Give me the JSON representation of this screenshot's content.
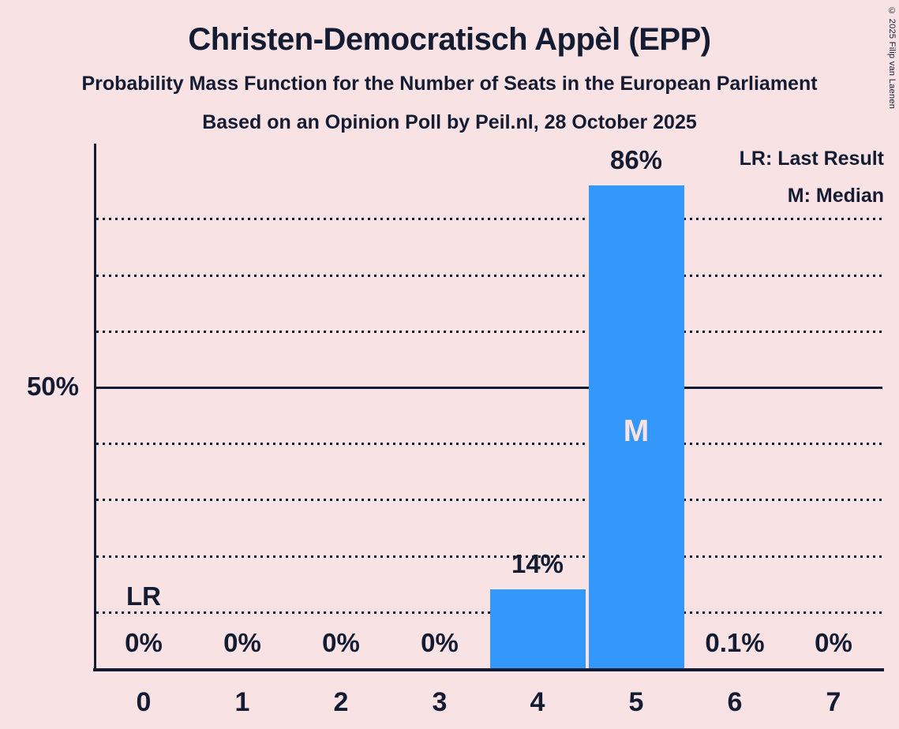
{
  "header": {
    "title": "Christen-Democratisch Appèl (EPP)",
    "subtitle": "Probability Mass Function for the Number of Seats in the European Parliament",
    "source_line": "Based on an Opinion Poll by Peil.nl, 28 October 2025"
  },
  "copyright": "© 2025 Filip van Laenen",
  "legend": {
    "last_result": "LR: Last Result",
    "median": "M: Median"
  },
  "y_axis": {
    "label": "50%"
  },
  "colors": {
    "background": "#F8E2E4",
    "bar": "#3498FB",
    "ink": "#141C33"
  },
  "chart_data": {
    "type": "bar",
    "title": "Christen-Democratisch Appèl (EPP)",
    "categories": [
      "0",
      "1",
      "2",
      "3",
      "4",
      "5",
      "6",
      "7"
    ],
    "values": [
      0,
      0,
      0,
      0,
      14,
      86,
      0.1,
      0
    ],
    "value_labels": [
      "0%",
      "0%",
      "0%",
      "0%",
      "14%",
      "86%",
      "0.1%",
      "0%"
    ],
    "ylim": [
      0,
      93
    ],
    "gridlines": {
      "step_percent": 10,
      "max_percent": 80,
      "solid_at_percent": 50,
      "style": "dotted"
    },
    "legend_position": "top-right",
    "annotations": {
      "last_result_seat": "0",
      "last_result_label": "LR",
      "median_seat": "5",
      "median_label": "M"
    }
  }
}
